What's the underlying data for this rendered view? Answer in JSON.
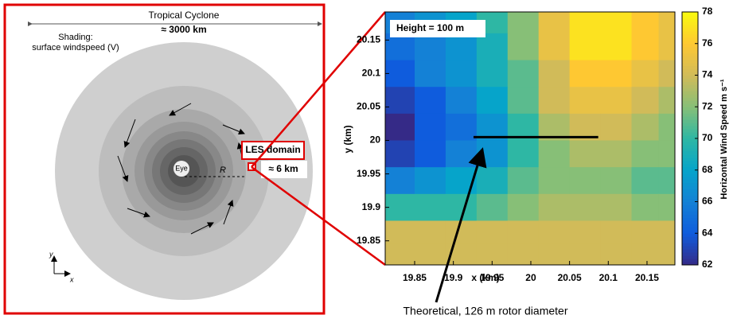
{
  "diagram": {
    "title": "Tropical Cyclone",
    "width_label": "≈ 3000 km",
    "shading_label": "Shading:",
    "shading_desc": "surface windspeed (V)",
    "eye_label": "Eye",
    "radius_label": "R",
    "les_label": "LES domain",
    "les_size": "≈ 6 km",
    "axis_y": "y",
    "axis_x": "x"
  },
  "chart_data": {
    "type": "heatmap",
    "annotation": "Height = 100 m",
    "xlabel": "x (km)",
    "ylabel": "y (km)",
    "colorbar_label": "Horizontal Wind Speed m s⁻¹",
    "x": [
      19.83,
      19.87,
      19.91,
      19.95,
      19.99,
      20.03,
      20.07,
      20.11,
      20.15,
      20.18
    ],
    "y": [
      20.18,
      20.14,
      20.1,
      20.06,
      20.02,
      19.98,
      19.94,
      19.9,
      19.86,
      19.83
    ],
    "z": [
      [
        66,
        67,
        68,
        70,
        72,
        75,
        77,
        77,
        76,
        75
      ],
      [
        65,
        66,
        67,
        69,
        72,
        75,
        77,
        77,
        76,
        75
      ],
      [
        64,
        66,
        67,
        69,
        71,
        74,
        76,
        76,
        75,
        74
      ],
      [
        63,
        64,
        66,
        68,
        71,
        74,
        75,
        75,
        74,
        73
      ],
      [
        62,
        64,
        65,
        67,
        70,
        73,
        74,
        74,
        73,
        72
      ],
      [
        63,
        64,
        66,
        67,
        70,
        72,
        73,
        73,
        72,
        72
      ],
      [
        66,
        67,
        68,
        69,
        71,
        72,
        72,
        72,
        71,
        71
      ],
      [
        70,
        70,
        70,
        71,
        72,
        73,
        73,
        73,
        72,
        72
      ],
      [
        74,
        74,
        74,
        74,
        74,
        74,
        74,
        74,
        74,
        74
      ],
      [
        74,
        74,
        74,
        74,
        74,
        74,
        74,
        74,
        74,
        74
      ]
    ],
    "xlim": [
      19.812,
      20.186
    ],
    "ylim": [
      19.814,
      20.192
    ],
    "xticks": [
      19.85,
      19.9,
      19.95,
      20,
      20.05,
      20.1,
      20.15
    ],
    "yticks": [
      19.85,
      19.9,
      19.95,
      20,
      20.05,
      20.1,
      20.15
    ],
    "zlim": [
      62,
      78
    ],
    "zticks": [
      62,
      64,
      66,
      68,
      70,
      72,
      74,
      76,
      78
    ],
    "colormap": [
      "#352a87",
      "#0f5cdd",
      "#1481d6",
      "#06a4ca",
      "#2eb7a4",
      "#87bf77",
      "#d1bb59",
      "#fec832",
      "#f9fb0e"
    ],
    "rotor_line": {
      "x": [
        19.926,
        20.087
      ],
      "y": 20.005,
      "label": "Theoretical, 126 m rotor diameter"
    }
  }
}
